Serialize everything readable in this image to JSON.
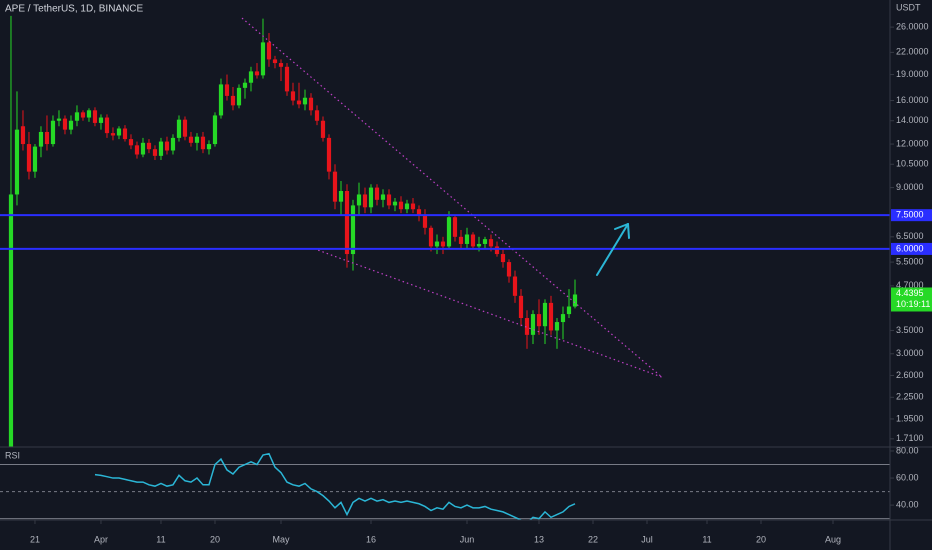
{
  "chart_data": {
    "type": "candlestick",
    "title": "APE / TetherUS, 1D, BINANCE",
    "axis_unit": "USDT",
    "log_scale": true,
    "grid": false,
    "up_color": "#26d926",
    "down_color": "#e8141b",
    "x": [
      0,
      1,
      2,
      3,
      4,
      5,
      6,
      7,
      8,
      9,
      10,
      11,
      12,
      13,
      14,
      15,
      16,
      17,
      18,
      19,
      20,
      21,
      22,
      23,
      24,
      25,
      26,
      27,
      28,
      29,
      30,
      31,
      32,
      33,
      34,
      35,
      36,
      37,
      38,
      39,
      40,
      41,
      42,
      43,
      44,
      45,
      46,
      47,
      48,
      49,
      50,
      51,
      52,
      53,
      54,
      55,
      56,
      57,
      58,
      59,
      60,
      61,
      62,
      63,
      64,
      65,
      66,
      67,
      68,
      69,
      70,
      71,
      72,
      73,
      74,
      75,
      76,
      77,
      78,
      79,
      80,
      81,
      82,
      83,
      84,
      85,
      86,
      87,
      88,
      89,
      90,
      91,
      92,
      93,
      94
    ],
    "open": [
      1.0,
      8.6,
      13.5,
      12,
      10,
      11.8,
      13,
      12,
      14,
      14.2,
      13.2,
      14,
      14.8,
      14.3,
      15,
      13.8,
      14.3,
      12.9,
      12.7,
      13.3,
      12.4,
      11.9,
      11.2,
      12.1,
      11.6,
      11.1,
      12.2,
      11.5,
      12.5,
      14.1,
      12.6,
      12.1,
      12.6,
      11.6,
      12,
      14.5,
      17.8,
      16.5,
      15.5,
      17.4,
      18,
      19.4,
      18.9,
      23.5,
      21,
      20.5,
      20,
      17,
      16,
      15.6,
      16.3,
      15,
      14,
      12.5,
      10,
      8.2,
      8.8,
      5.8,
      8,
      8.6,
      7.9,
      9,
      8.3,
      8.6,
      8,
      8.2,
      7.8,
      8.1,
      7.8,
      7.5,
      6.9,
      6.1,
      6.3,
      6.1,
      7.4,
      6.5,
      6.2,
      6.6,
      6.1,
      6.2,
      6.4,
      6.1,
      5.8,
      5.5,
      5,
      4.4,
      3.8,
      3.4,
      3.9,
      3.6,
      4.2,
      3.5,
      3.7,
      3.9,
      4.1
    ],
    "high": [
      28,
      17,
      15,
      13,
      12,
      13.5,
      14.5,
      14.5,
      15,
      14.5,
      14.5,
      15.5,
      15,
      15.2,
      15.3,
      14.6,
      14.6,
      13.4,
      13.5,
      13.6,
      12.8,
      12.2,
      12.5,
      12.4,
      11.9,
      12.5,
      12.6,
      12.8,
      14.5,
      14.4,
      13,
      12.9,
      13,
      12.3,
      14.8,
      18.5,
      19,
      17.5,
      17.8,
      18.5,
      20,
      20.5,
      27.5,
      25,
      21.5,
      21,
      20.5,
      18,
      18,
      17.2,
      16.8,
      15.5,
      14.4,
      12.8,
      10.5,
      9.4,
      9.2,
      8.3,
      9.3,
      9,
      9.2,
      9.2,
      8.9,
      8.9,
      8.4,
      8.5,
      8.3,
      8.4,
      8,
      7.8,
      7,
      6.6,
      6.5,
      7.7,
      7.5,
      6.8,
      6.9,
      6.7,
      6.5,
      6.5,
      6.6,
      6.3,
      6,
      5.6,
      5.2,
      4.6,
      4,
      4,
      4.3,
      4.3,
      4.4,
      3.8,
      4.1,
      4.6,
      4.9
    ],
    "low": [
      1.0,
      8,
      11.5,
      9.5,
      9.6,
      11,
      11.5,
      11.8,
      13.5,
      12.8,
      12.8,
      13.5,
      14,
      13.9,
      13.5,
      13.2,
      12.5,
      12.3,
      12.4,
      12.2,
      11.6,
      10.9,
      11,
      11.3,
      10.8,
      10.8,
      11.2,
      11.2,
      12.2,
      12.3,
      11.8,
      11.5,
      11.3,
      11.2,
      11.8,
      14.2,
      16,
      15,
      15.2,
      16.2,
      17,
      18.5,
      18.5,
      20,
      19.8,
      18.2,
      16.5,
      15.5,
      15.2,
      15,
      14.5,
      13.6,
      12.2,
      9.5,
      7.8,
      7.5,
      5.3,
      5.2,
      7.5,
      7.6,
      7.6,
      8,
      7.9,
      7.8,
      7.7,
      7.6,
      7.6,
      7.6,
      7.2,
      6.6,
      5.9,
      5.8,
      5.8,
      6,
      6.3,
      6,
      6,
      6,
      5.9,
      6,
      5.9,
      5.7,
      5.3,
      4.8,
      4.2,
      3.6,
      3.1,
      3.2,
      3.4,
      3.2,
      3.4,
      3.1,
      3.3,
      3.8,
      4.05
    ],
    "close": [
      8.6,
      13.2,
      12,
      10,
      11.8,
      13,
      12,
      14,
      14.2,
      13.2,
      14,
      14.8,
      14.3,
      15,
      13.8,
      14.3,
      12.9,
      12.7,
      13.3,
      12.4,
      11.9,
      11.2,
      12.1,
      11.6,
      11.1,
      12.2,
      11.5,
      12.5,
      14.1,
      12.6,
      12.1,
      12.6,
      11.6,
      12,
      14.5,
      17.8,
      16.5,
      15.5,
      17.4,
      18,
      19.4,
      18.9,
      23.5,
      21,
      20.5,
      20,
      17,
      16,
      15.6,
      16.3,
      15,
      14,
      12.5,
      10,
      8.2,
      8.8,
      5.8,
      8,
      8.6,
      7.9,
      9,
      8.3,
      8.6,
      8,
      8.2,
      7.8,
      8.1,
      7.8,
      7.5,
      6.9,
      6.1,
      6.3,
      6.1,
      7.4,
      6.5,
      6.2,
      6.6,
      6.1,
      6.2,
      6.4,
      6.1,
      5.8,
      5.5,
      5,
      4.4,
      3.8,
      3.4,
      3.9,
      3.6,
      4.2,
      3.5,
      3.7,
      3.9,
      4.1,
      4.4395
    ],
    "xlim": [
      -1.83,
      146.5
    ],
    "xticks": [
      {
        "value": 4,
        "label": "21"
      },
      {
        "value": 15,
        "label": "Apr"
      },
      {
        "value": 25,
        "label": "11"
      },
      {
        "value": 34,
        "label": "20"
      },
      {
        "value": 45,
        "label": "May"
      },
      {
        "value": 60,
        "label": "16"
      },
      {
        "value": 76,
        "label": "Jun"
      },
      {
        "value": 88,
        "label": "13"
      },
      {
        "value": 97,
        "label": "22"
      },
      {
        "value": 106,
        "label": "Jul"
      },
      {
        "value": 116,
        "label": "11"
      },
      {
        "value": 125,
        "label": "20"
      },
      {
        "value": 137,
        "label": "Aug"
      }
    ],
    "ylim": [
      1.62,
      31.1
    ],
    "yticks": [
      {
        "value": 26,
        "label": "26.0000"
      },
      {
        "value": 22,
        "label": "22.0000"
      },
      {
        "value": 19,
        "label": "19.0000"
      },
      {
        "value": 16,
        "label": "16.0000"
      },
      {
        "value": 14,
        "label": "14.0000"
      },
      {
        "value": 12,
        "label": "12.0000"
      },
      {
        "value": 10.5,
        "label": "10.5000"
      },
      {
        "value": 9,
        "label": "9.0000"
      },
      {
        "value": 6.5,
        "label": "6.5000"
      },
      {
        "value": 5.5,
        "label": "5.5000"
      },
      {
        "value": 4.7,
        "label": "4.7000"
      },
      {
        "value": 3.5,
        "label": "3.5000"
      },
      {
        "value": 3,
        "label": "3.0000"
      },
      {
        "value": 2.6,
        "label": "2.6000"
      },
      {
        "value": 2.25,
        "label": "2.2500"
      },
      {
        "value": 1.95,
        "label": "1.9500"
      },
      {
        "value": 1.71,
        "label": "1.7100"
      }
    ],
    "levels": [
      {
        "value": 7.5,
        "label": "7.5000"
      },
      {
        "value": 6,
        "label": "6.0000"
      }
    ],
    "level_color": "#2a2eff",
    "trendlines": [
      {
        "x": [
          38.5,
          108.5
        ],
        "y": [
          27.6,
          2.57
        ]
      },
      {
        "x": [
          51.2,
          108.5
        ],
        "y": [
          5.95,
          2.57
        ]
      }
    ],
    "trendline_color": "#c040c8",
    "last_price": {
      "value": 4.4395,
      "countdown": "10:19:11"
    },
    "rsi": {
      "title": "RSI",
      "color": "#2bb6d6",
      "values": [
        null,
        null,
        null,
        null,
        null,
        null,
        null,
        null,
        null,
        null,
        null,
        null,
        null,
        null,
        62.5,
        62,
        61,
        60,
        60,
        59,
        58,
        57,
        57,
        55,
        54,
        56,
        54,
        55,
        62,
        58,
        57,
        60,
        55,
        55,
        70,
        74,
        66,
        63,
        68,
        70,
        72,
        70,
        77,
        78,
        68,
        64,
        57,
        55,
        54,
        56,
        52,
        50,
        47,
        43,
        38,
        42,
        33,
        42,
        45,
        43,
        45,
        43,
        44,
        42,
        43,
        42,
        43,
        42,
        41,
        39,
        36,
        38,
        37,
        42,
        39,
        38,
        40,
        38,
        38,
        39,
        37,
        36,
        35,
        33,
        31,
        29,
        27,
        31,
        30,
        35,
        31,
        33,
        35,
        39,
        41
      ],
      "ylim": [
        29,
        82.2
      ],
      "yticks": [
        {
          "value": 80,
          "label": "80.00"
        },
        {
          "value": 60,
          "label": "60.00"
        },
        {
          "value": 40,
          "label": "40.00"
        }
      ],
      "bands": [
        70,
        50,
        30
      ]
    }
  }
}
